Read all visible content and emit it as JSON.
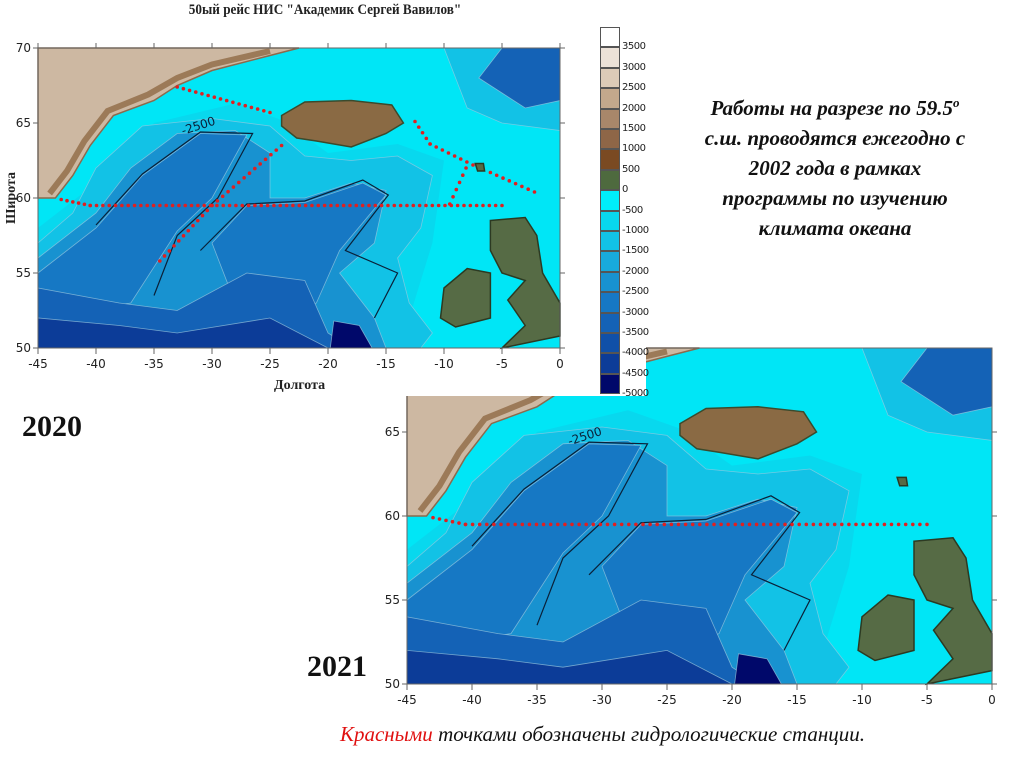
{
  "map_2020": {
    "title": "50ый рейс НИС \"Академик Сергей Вавилов\"",
    "xlabel": "Долгота",
    "ylabel": "Широта",
    "xlim": [
      -45,
      0
    ],
    "ylim": [
      50,
      70
    ],
    "x_ticks": [
      "-45",
      "-40",
      "-35",
      "-30",
      "-25",
      "-20",
      "-15",
      "-10",
      "-5",
      "0"
    ],
    "y_ticks": [
      "70",
      "65",
      "60",
      "55",
      "50"
    ],
    "contour_label": "-2500",
    "year_label": "2020",
    "station_tracks": [
      {
        "from": [
          -43,
          59.9
        ],
        "to": [
          -40.5,
          59.5
        ]
      },
      {
        "from": [
          -40.5,
          59.5
        ],
        "to": [
          -5,
          59.5
        ]
      },
      {
        "from": [
          -33,
          67.4
        ],
        "to": [
          -25,
          65.7
        ]
      },
      {
        "from": [
          -24,
          63.5
        ],
        "to": [
          -30,
          59.5
        ]
      },
      {
        "from": [
          -30,
          59.5
        ],
        "to": [
          -34.5,
          55.8
        ]
      },
      {
        "from": [
          -12.5,
          65.1
        ],
        "to": [
          -11.2,
          63.6
        ]
      },
      {
        "from": [
          -11.2,
          63.6
        ],
        "to": [
          -7.5,
          62.2
        ]
      },
      {
        "from": [
          -9.5,
          59.6
        ],
        "to": [
          -8.1,
          62
        ]
      },
      {
        "from": [
          -6,
          61.7
        ],
        "to": [
          -2.2,
          60.4
        ]
      }
    ]
  },
  "map_2021": {
    "xlim": [
      -45,
      0
    ],
    "ylim": [
      50,
      70
    ],
    "x_ticks": [
      "-45",
      "-40",
      "-35",
      "-30",
      "-25",
      "-20",
      "-15",
      "-10",
      "-5",
      "0"
    ],
    "y_ticks": [
      "65",
      "60",
      "55",
      "50"
    ],
    "contour_label": "-2500",
    "year_label": "2021",
    "station_tracks": [
      {
        "from": [
          -43,
          59.9
        ],
        "to": [
          -40.5,
          59.5
        ]
      },
      {
        "from": [
          -40.5,
          59.5
        ],
        "to": [
          -5,
          59.5
        ]
      }
    ]
  },
  "colorbar": {
    "labels": [
      "3500",
      "3000",
      "2500",
      "2000",
      "1500",
      "1000",
      "500",
      "0",
      "-500",
      "-1000",
      "-1500",
      "-2000",
      "-2500",
      "-3000",
      "-3500",
      "-4000",
      "-4500",
      "-5000"
    ],
    "colors": [
      "#ffffff",
      "#ece2d8",
      "#dccbb8",
      "#c3a88c",
      "#a8876a",
      "#8e6647",
      "#7a4a22",
      "#4e6a3e",
      "#00eefa",
      "#08d8ee",
      "#12c2e6",
      "#18aadc",
      "#1892d0",
      "#1678c4",
      "#1462b6",
      "#1050a8",
      "#0c3c98",
      "#00086a"
    ]
  },
  "colors": {
    "station": "#e02020",
    "land_green": "#566b45",
    "shelf": "#00e6f6"
  },
  "note": {
    "line1": "Работы на разрезе по 59.5",
    "degree": "о",
    "line2": "с.ш. проводятся ежегодно с",
    "line3": "2002 года в рамках",
    "line4": "программы по изучению",
    "line5": "климата океана"
  },
  "caption": {
    "highlight": "Красными",
    "rest": " точками обозначены гидрологические станции."
  }
}
